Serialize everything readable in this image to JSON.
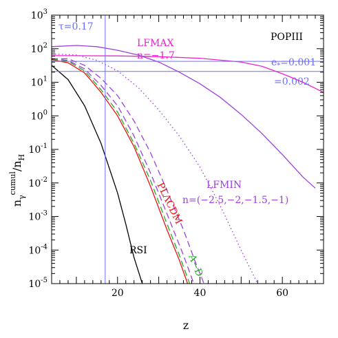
{
  "chart_data": {
    "type": "line",
    "xlabel": "z",
    "ylabel": "n_γ^cumul / n_H",
    "ylabel_main": "n",
    "ylabel_sub": "γ",
    "ylabel_sup": "cumul",
    "ylabel_rest": "/n",
    "ylabel_rest_sub": "H",
    "xscale": "linear",
    "yscale": "log",
    "xlim": [
      4,
      70
    ],
    "ylim_exponents": [
      -5,
      3
    ],
    "x_ticks": [
      20,
      40,
      60
    ],
    "y_ticks": [
      {
        "base": "10",
        "exp": "3"
      },
      {
        "base": "10",
        "exp": "2"
      },
      {
        "base": "10",
        "exp": "1"
      },
      {
        "base": "10",
        "exp": "0"
      },
      {
        "base": "10",
        "exp": "-1"
      },
      {
        "base": "10",
        "exp": "-2"
      },
      {
        "base": "10",
        "exp": "-3"
      },
      {
        "base": "10",
        "exp": "-4"
      },
      {
        "base": "10",
        "exp": "-5"
      }
    ],
    "colors": {
      "blue": "#6b6bff",
      "magenta": "#ee22cc",
      "purple": "#9b3fe0",
      "red": "#ee1111",
      "green": "#22aa22",
      "black": "#000000"
    },
    "annotations": {
      "tau": "τ=0.17",
      "lfmax": "LFMAX",
      "n_lfmax": "n=−1.7",
      "popiii": "POPIII",
      "e1": "e",
      "e1_sub": "*",
      "e1_value": "=0.001",
      "e2": "=0.002",
      "lfmin": "LFMIN",
      "n_lfmin": "n=(−2.5,−2,−1.5,−1)",
      "plcdm": "PLΛCDM",
      "ad": "A−D",
      "rsi": "RSI"
    },
    "reference_lines": {
      "tau_z": 17,
      "e_star_0_001_level": 42,
      "e_star_0_002_level": 21
    },
    "series": [
      {
        "color": "magenta",
        "style": "solid",
        "points": [
          [
            4,
            62
          ],
          [
            10,
            62
          ],
          [
            20,
            61
          ],
          [
            30,
            58
          ],
          [
            40,
            52
          ],
          [
            50,
            40
          ],
          [
            55,
            30
          ],
          [
            60,
            18
          ],
          [
            65,
            10
          ],
          [
            70,
            5
          ]
        ]
      },
      {
        "color": "purple",
        "style": "solid",
        "points": [
          [
            4,
            115
          ],
          [
            10,
            125
          ],
          [
            15,
            115
          ],
          [
            20,
            90
          ],
          [
            25,
            65
          ],
          [
            30,
            40
          ],
          [
            35,
            20
          ],
          [
            40,
            9
          ],
          [
            45,
            3.5
          ],
          [
            50,
            1.1
          ],
          [
            55,
            0.3
          ],
          [
            60,
            0.07
          ],
          [
            65,
            0.015
          ],
          [
            68,
            0.007
          ]
        ]
      },
      {
        "color": "purple",
        "style": "dotted",
        "points": [
          [
            4,
            70
          ],
          [
            10,
            65
          ],
          [
            15,
            45
          ],
          [
            20,
            22
          ],
          [
            25,
            7
          ],
          [
            30,
            1.5
          ],
          [
            35,
            0.25
          ],
          [
            40,
            0.03
          ],
          [
            45,
            0.002
          ],
          [
            50,
            0.0001
          ],
          [
            54,
            1e-05
          ]
        ]
      },
      {
        "color": "purple",
        "style": "dashed",
        "points": [
          [
            4,
            50
          ],
          [
            8,
            50
          ],
          [
            12,
            32
          ],
          [
            16,
            13
          ],
          [
            20,
            4
          ],
          [
            24,
            0.7
          ],
          [
            28,
            0.08
          ],
          [
            32,
            0.006
          ],
          [
            36,
            0.0004
          ],
          [
            39,
            4e-05
          ],
          [
            41,
            1e-05
          ]
        ]
      },
      {
        "color": "purple",
        "style": "dashed",
        "points": [
          [
            4,
            50
          ],
          [
            8,
            45
          ],
          [
            12,
            25
          ],
          [
            16,
            8
          ],
          [
            20,
            2
          ],
          [
            24,
            0.25
          ],
          [
            28,
            0.02
          ],
          [
            32,
            0.0012
          ],
          [
            36,
            7e-05
          ],
          [
            38.5,
            1e-05
          ]
        ]
      },
      {
        "color": "green",
        "style": "dashed",
        "points": [
          [
            4,
            50
          ],
          [
            8,
            42
          ],
          [
            12,
            22
          ],
          [
            16,
            6
          ],
          [
            20,
            1.3
          ],
          [
            24,
            0.15
          ],
          [
            28,
            0.012
          ],
          [
            32,
            0.0006
          ],
          [
            35,
            7e-05
          ],
          [
            37.5,
            1e-05
          ]
        ]
      },
      {
        "color": "red",
        "style": "solid",
        "points": [
          [
            4,
            47
          ],
          [
            8,
            38
          ],
          [
            12,
            19
          ],
          [
            16,
            5
          ],
          [
            20,
            1
          ],
          [
            24,
            0.12
          ],
          [
            28,
            0.008
          ],
          [
            32,
            0.0004
          ],
          [
            35,
            5e-05
          ],
          [
            37,
            1e-05
          ]
        ]
      },
      {
        "color": "black",
        "style": "solid",
        "points": [
          [
            4,
            32
          ],
          [
            8,
            12
          ],
          [
            12,
            2
          ],
          [
            16,
            0.15
          ],
          [
            20,
            0.005
          ],
          [
            22,
            0.0006
          ],
          [
            24,
            6e-05
          ],
          [
            26,
            1e-05
          ]
        ]
      }
    ]
  }
}
